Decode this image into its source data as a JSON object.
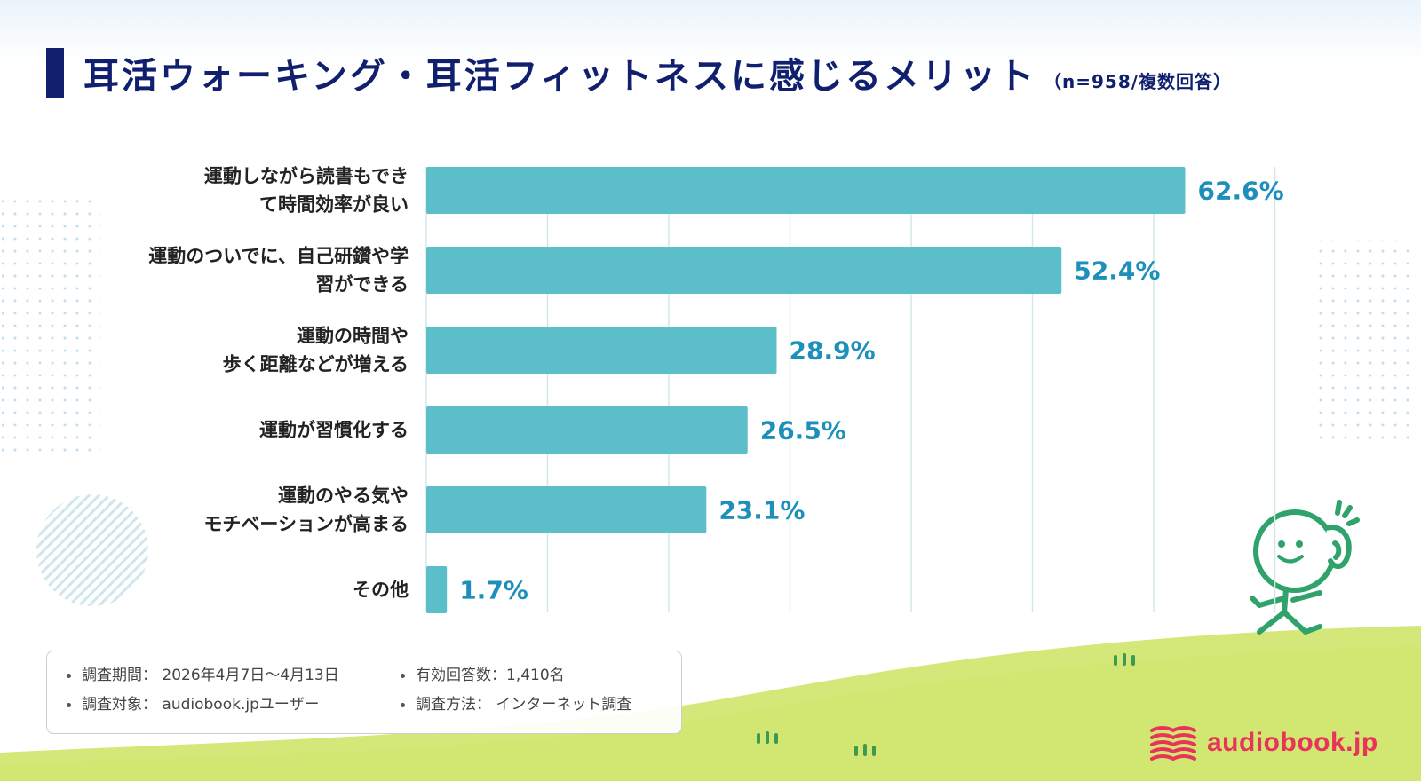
{
  "header": {
    "title": "耳活ウォーキング・耳活フィットネスに感じるメリット",
    "subtitle": "（n=958/複数回答）"
  },
  "chart_data": {
    "type": "bar",
    "orientation": "horizontal",
    "title": "耳活ウォーキング・耳活フィットネスに感じるメリット",
    "categories": [
      [
        "運動しながら読書もでき",
        "て時間効率が良い"
      ],
      [
        "運動のついでに、自己研鑽や学",
        "習ができる"
      ],
      [
        "運動の時間や",
        "歩く距離などが増える"
      ],
      [
        "運動が習慣化する"
      ],
      [
        "運動のやる気や",
        "モチベーションが高まる"
      ],
      [
        "その他"
      ]
    ],
    "values": [
      62.6,
      52.4,
      28.9,
      26.5,
      23.1,
      1.7
    ],
    "value_labels": [
      "62.6%",
      "52.4%",
      "28.9%",
      "26.5%",
      "23.1%",
      "1.7%"
    ],
    "xlim": [
      0,
      70
    ],
    "grid": true,
    "bar_color": "#5bbec8",
    "label_color": "#1c8fba",
    "grid_color": "#d3e7ea"
  },
  "info": {
    "items": [
      "調査期間： 2026年4月7日〜4月13日",
      "有効回答数：1,410名",
      "調査対象： audiobook.jpユーザー",
      "調査方法： インターネット調査"
    ]
  },
  "logo": {
    "text": "audiobook.jp",
    "color": "#e8345a"
  },
  "colors": {
    "title": "#10206e",
    "grass": "#d4e87a",
    "mascot": "#2fa36b"
  }
}
